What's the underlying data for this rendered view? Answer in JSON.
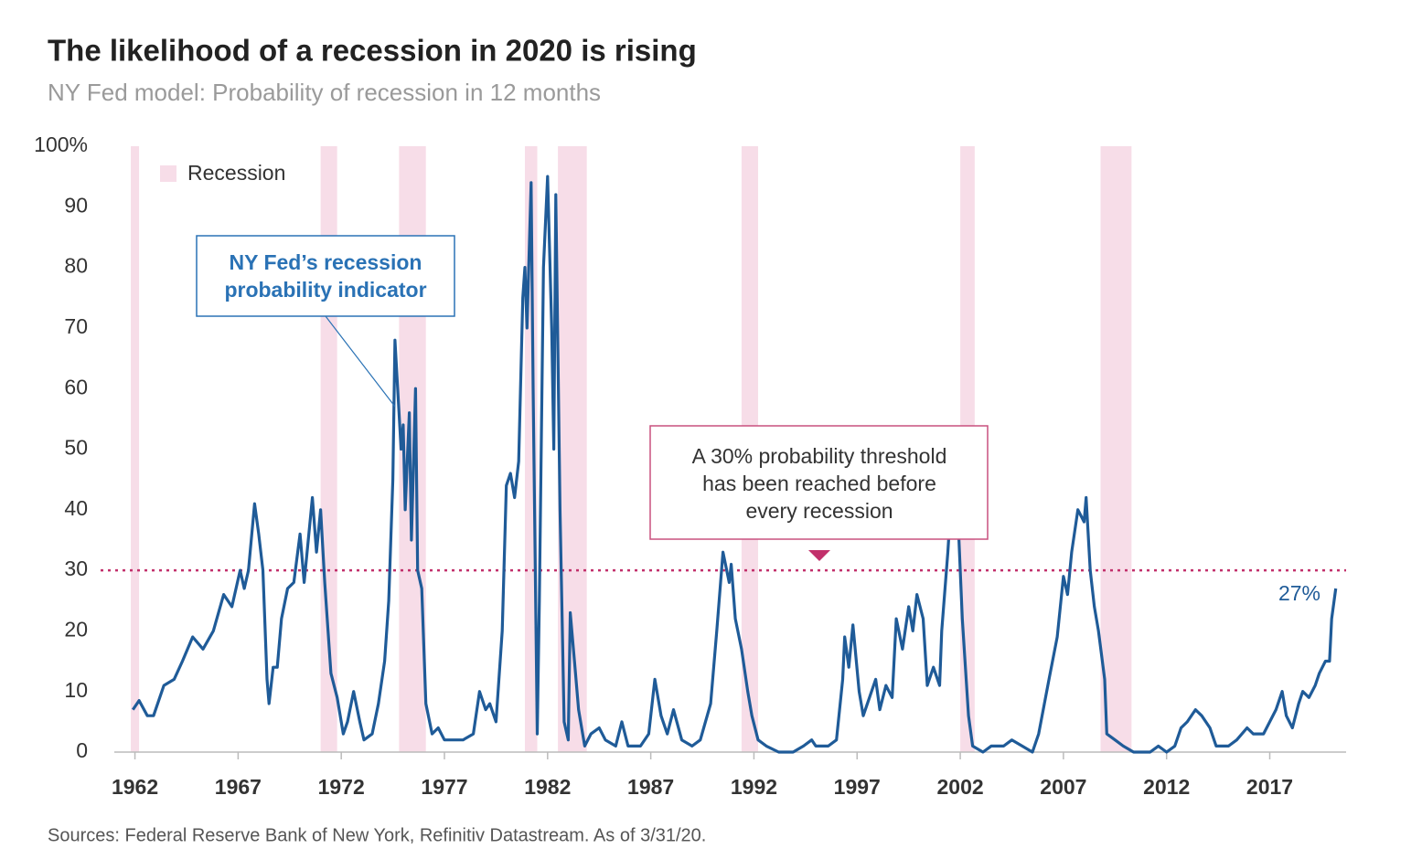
{
  "chart_data": {
    "type": "line",
    "title": "The likelihood of a recession in 2020 is rising",
    "subtitle": "NY Fed model: Probability of recession in 12 months",
    "source": "Sources: Federal Reserve Bank of New York, Refinitiv Datastream. As of 3/31/20.",
    "legend": {
      "label": "Recession",
      "color": "#f7dde8",
      "position": "upper left"
    },
    "recessions": [
      [
        1961.8,
        1962.2
      ],
      [
        1971.0,
        1971.8
      ],
      [
        1974.8,
        1976.1
      ],
      [
        1980.9,
        1981.5
      ],
      [
        1982.5,
        1983.9
      ],
      [
        1991.4,
        1992.2
      ],
      [
        2002.0,
        2002.7
      ],
      [
        2008.8,
        2010.3
      ]
    ],
    "threshold": 30,
    "threshold_color": "#c2306b",
    "annotations": [
      {
        "lines": [
          "NY Fed’s recession",
          "probability indicator"
        ],
        "color": "#2a72b5"
      },
      {
        "lines": [
          "A 30% probability threshold",
          "has been reached before",
          "every recession"
        ],
        "color": "#c9507f"
      }
    ],
    "end_label": "27%",
    "xlim": [
      1961,
      2020.7
    ],
    "xticks": [
      1962,
      1967,
      1972,
      1977,
      1982,
      1987,
      1992,
      1997,
      2002,
      2007,
      2012,
      2017
    ],
    "ylim": [
      0,
      100
    ],
    "yticks": [
      0,
      10,
      20,
      30,
      40,
      50,
      60,
      70,
      80,
      90,
      {
        "value": 100,
        "label": "100%"
      }
    ],
    "x": [
      1961.9,
      1962.2,
      1962.6,
      1962.9,
      1963.4,
      1963.9,
      1964.3,
      1964.8,
      1965.3,
      1965.8,
      1966.3,
      1966.7,
      1967.1,
      1967.3,
      1967.5,
      1967.8,
      1968.0,
      1968.2,
      1968.4,
      1968.5,
      1968.7,
      1968.9,
      1969.1,
      1969.4,
      1969.7,
      1970.0,
      1970.2,
      1970.6,
      1970.8,
      1971.0,
      1971.2,
      1971.5,
      1971.8,
      1972.1,
      1972.3,
      1972.6,
      1972.9,
      1973.1,
      1973.5,
      1973.8,
      1974.1,
      1974.3,
      1974.5,
      1974.6,
      1974.7,
      1974.9,
      1975.0,
      1975.1,
      1975.3,
      1975.4,
      1975.6,
      1975.7,
      1975.9,
      1976.1,
      1976.4,
      1976.7,
      1977.0,
      1977.5,
      1977.9,
      1978.4,
      1978.7,
      1979.0,
      1979.2,
      1979.5,
      1979.8,
      1980.0,
      1980.2,
      1980.4,
      1980.6,
      1980.8,
      1980.9,
      1981.0,
      1981.2,
      1981.3,
      1981.5,
      1981.6,
      1981.8,
      1982.0,
      1982.2,
      1982.3,
      1982.4,
      1982.6,
      1982.8,
      1983.0,
      1983.1,
      1983.3,
      1983.5,
      1983.8,
      1984.1,
      1984.5,
      1984.8,
      1985.3,
      1985.6,
      1985.9,
      1986.5,
      1986.9,
      1987.2,
      1987.5,
      1987.8,
      1988.1,
      1988.5,
      1989.0,
      1989.4,
      1989.9,
      1990.2,
      1990.5,
      1990.8,
      1990.9,
      1991.1,
      1991.4,
      1991.7,
      1991.9,
      1992.2,
      1992.6,
      1993.2,
      1993.9,
      1994.4,
      1994.8,
      1995.0,
      1995.6,
      1996.0,
      1996.3,
      1996.4,
      1996.6,
      1996.8,
      1997.1,
      1997.3,
      1997.6,
      1997.9,
      1998.1,
      1998.4,
      1998.7,
      1998.9,
      1999.2,
      1999.5,
      1999.7,
      1999.9,
      2000.2,
      2000.4,
      2000.7,
      2001.0,
      2001.1,
      2001.4,
      2001.6,
      2001.9,
      2002.1,
      2002.4,
      2002.6,
      2003.1,
      2003.5,
      2004.1,
      2004.5,
      2005.0,
      2005.5,
      2005.8,
      2006.3,
      2006.7,
      2007.0,
      2007.2,
      2007.4,
      2007.7,
      2008.0,
      2008.1,
      2008.3,
      2008.5,
      2008.7,
      2009.0,
      2009.1,
      2009.5,
      2009.9,
      2010.4,
      2011.2,
      2011.6,
      2012.0,
      2012.4,
      2012.7,
      2013.0,
      2013.4,
      2013.7,
      2014.1,
      2014.4,
      2015.0,
      2015.4,
      2015.9,
      2016.2,
      2016.7,
      2017.0,
      2017.3,
      2017.6,
      2017.8,
      2018.1,
      2018.4,
      2018.6,
      2018.9,
      2019.2,
      2019.4,
      2019.7,
      2019.9,
      2020.0,
      2020.2
    ],
    "series": [
      {
        "color": "#1f5b98",
        "values": [
          7,
          8.5,
          6,
          6,
          11,
          12,
          15,
          19,
          17,
          20,
          26,
          24,
          30,
          27,
          30,
          41,
          36,
          30,
          12,
          8,
          14,
          14,
          22,
          27,
          28,
          36,
          28,
          42,
          33,
          40,
          28,
          13,
          9,
          3,
          5,
          10,
          5,
          2,
          3,
          8,
          15,
          25,
          45,
          68,
          62,
          50,
          54,
          40,
          56,
          35,
          60,
          30,
          27,
          8,
          3,
          4,
          2,
          2,
          2,
          3,
          10,
          7,
          8,
          5,
          20,
          44,
          46,
          42,
          48,
          75,
          80,
          70,
          94,
          60,
          3,
          25,
          80,
          95,
          70,
          50,
          92,
          40,
          5,
          2,
          23,
          15,
          7,
          1,
          3,
          4,
          2,
          1,
          5,
          1,
          1,
          3,
          12,
          6,
          3,
          7,
          2,
          1,
          2,
          8,
          20,
          33,
          28,
          31,
          22,
          17,
          10,
          6,
          2,
          1,
          0,
          0,
          1,
          2,
          1,
          1,
          2,
          12,
          19,
          14,
          21,
          10,
          6,
          9,
          12,
          7,
          11,
          9,
          22,
          17,
          24,
          20,
          26,
          22,
          11,
          14,
          11,
          20,
          33,
          44,
          38,
          22,
          6,
          1,
          0,
          1,
          1,
          2,
          1,
          0,
          3,
          12,
          19,
          29,
          26,
          33,
          40,
          38,
          42,
          30,
          24,
          20,
          12,
          3,
          2,
          1,
          0,
          0,
          1,
          0,
          1,
          4,
          5,
          7,
          6,
          4,
          1,
          1,
          2,
          4,
          3,
          3,
          5,
          7,
          10,
          6,
          4,
          8,
          10,
          9,
          11,
          13,
          15,
          15,
          22,
          27
        ]
      }
    ]
  }
}
